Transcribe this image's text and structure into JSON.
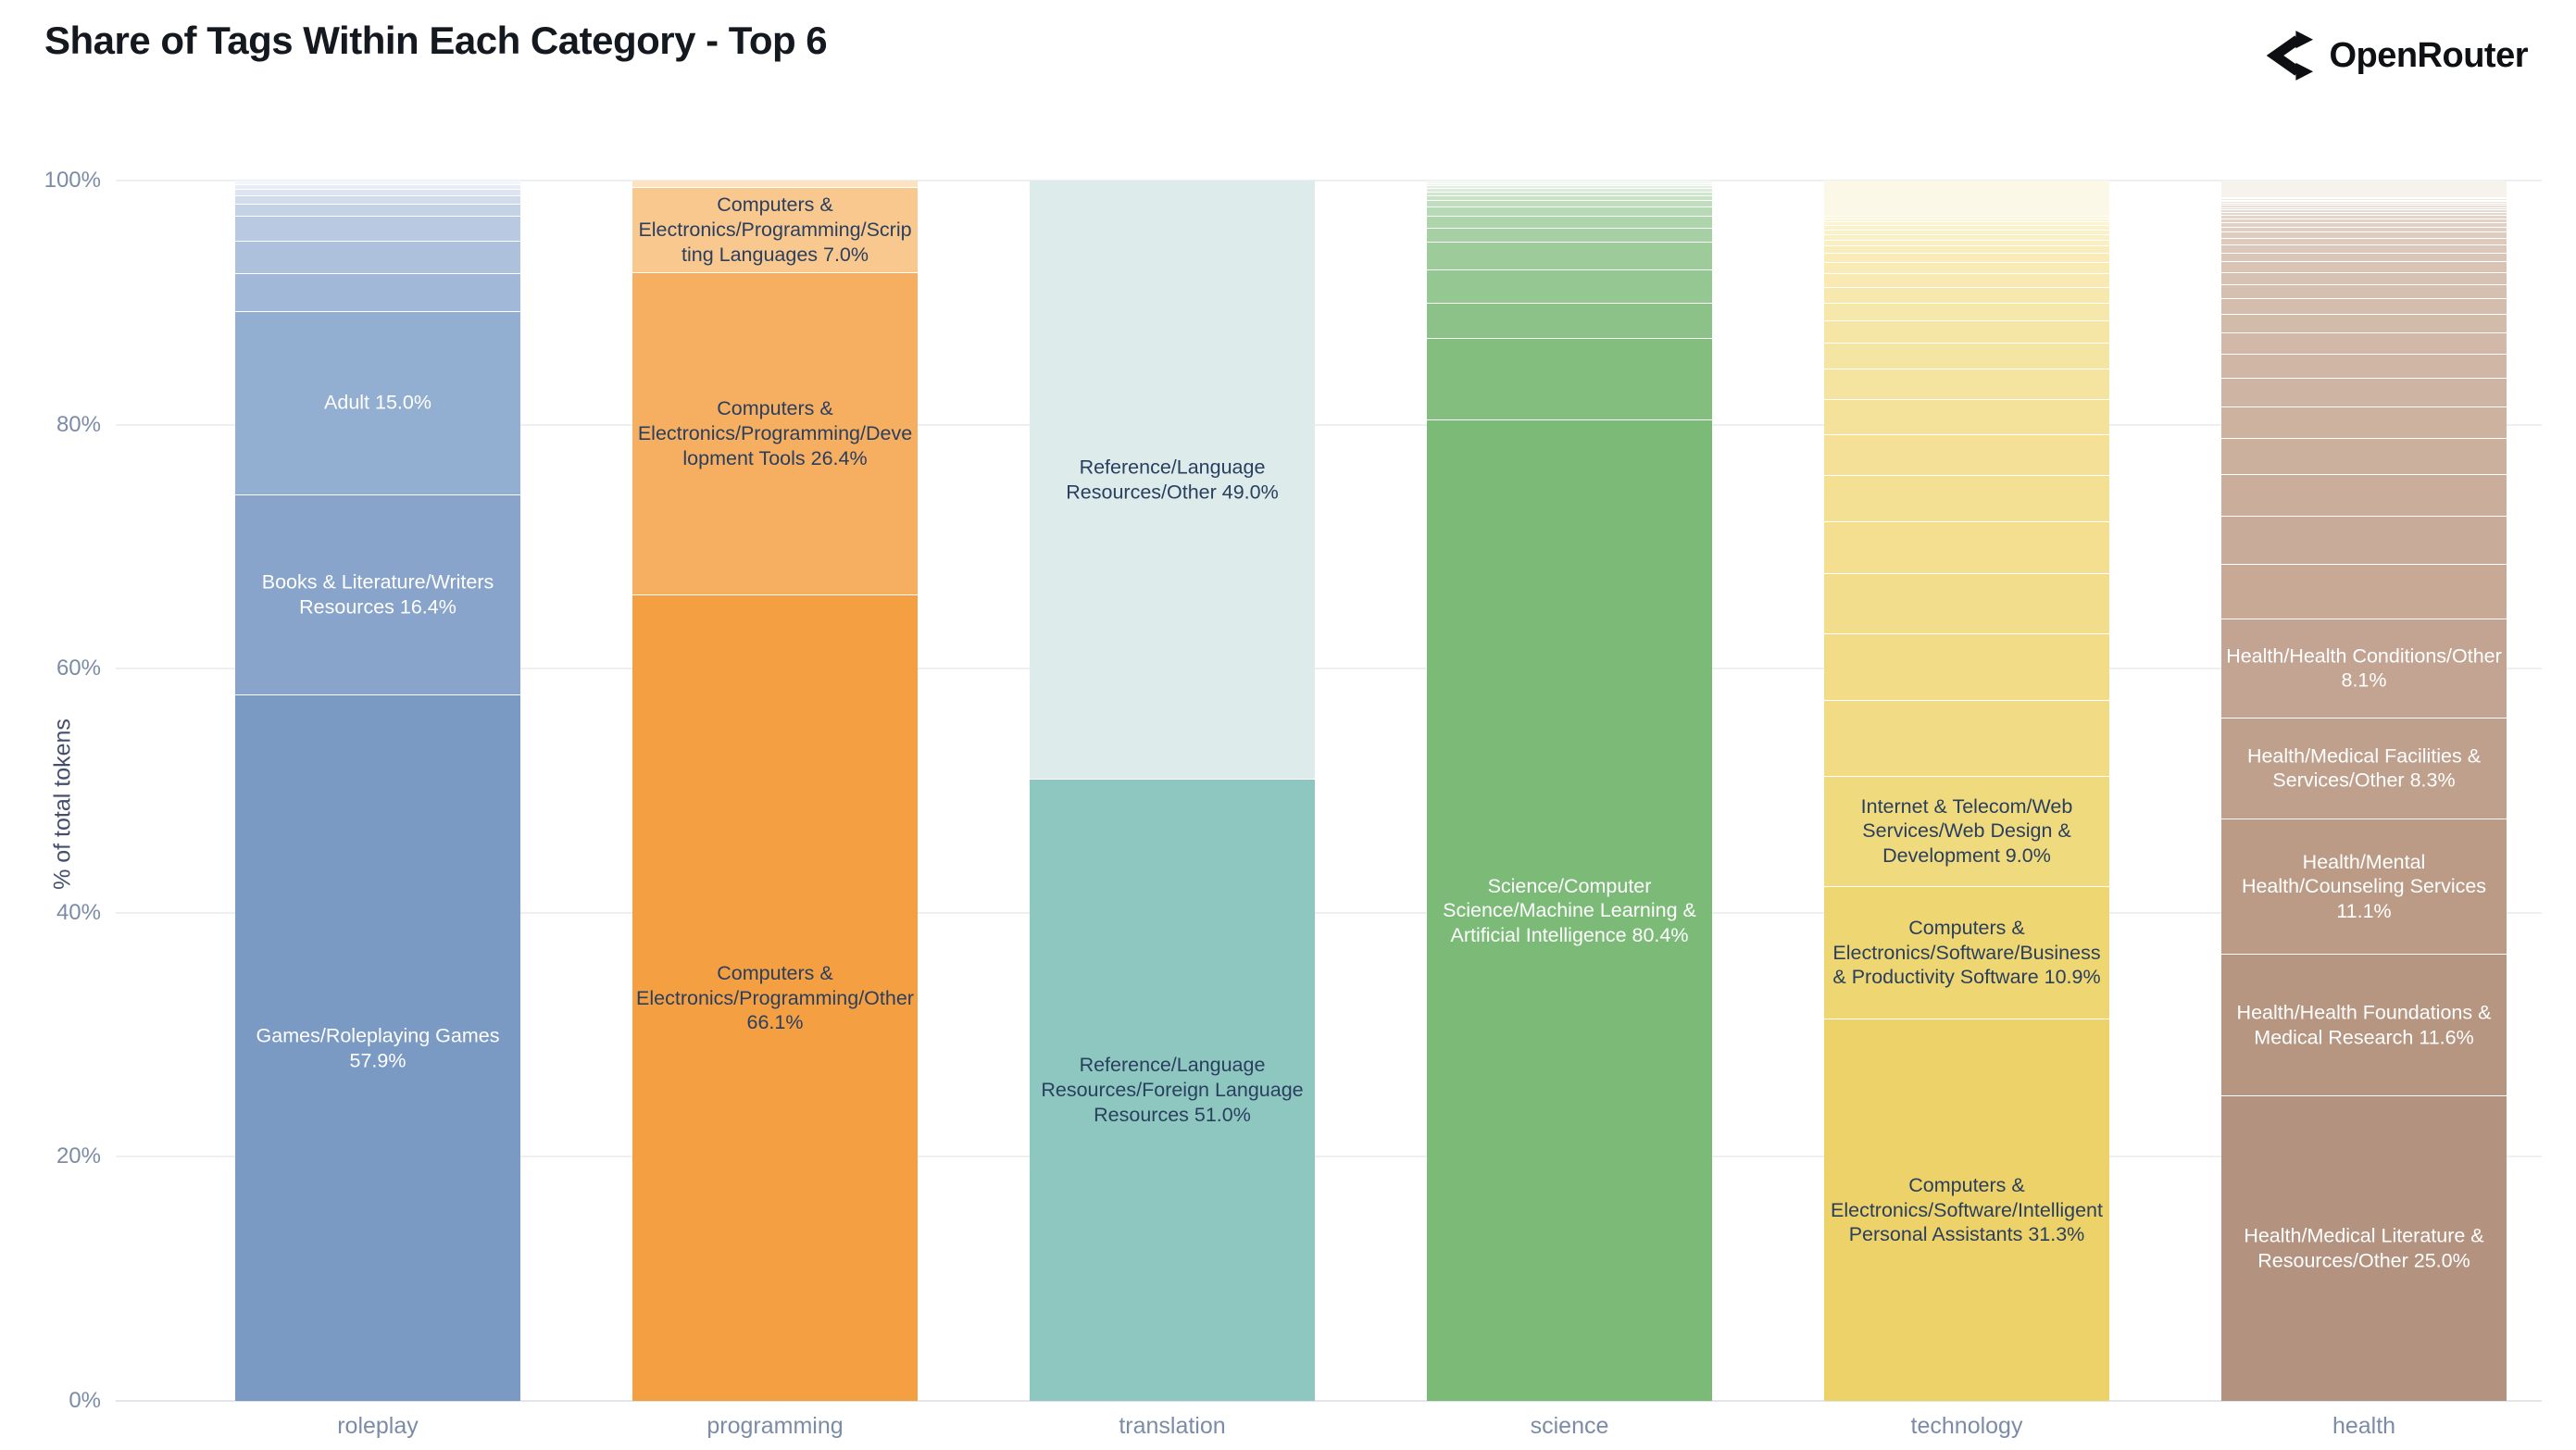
{
  "header": {
    "title": "Share of Tags Within Each Category - Top 6",
    "brand": "OpenRouter"
  },
  "chart_data": {
    "type": "bar",
    "stacked": true,
    "normalized": "percent",
    "title": "Share of Tags Within Each Category - Top 6",
    "xlabel": "",
    "ylabel": "% of total tokens",
    "ylim": [
      0,
      100
    ],
    "yticks": [
      "0%",
      "20%",
      "40%",
      "60%",
      "80%",
      "100%"
    ],
    "grid": true,
    "grid_color": "#edeff3",
    "legend": "none",
    "categories": [
      "roleplay",
      "programming",
      "translation",
      "science",
      "technology",
      "health"
    ],
    "bars": [
      {
        "category": "roleplay",
        "text_color": "#ffffff",
        "tail_from": "#a2b8d8",
        "tail_to": "#f2f5fa",
        "segments": [
          {
            "id": "games-roleplaying-games",
            "label": "Games/Roleplaying Games",
            "value": 57.9,
            "color": "#7a9ac4"
          },
          {
            "id": "books-literature-writers-resources",
            "label": "Books & Literature/Writers Resources",
            "value": 16.4,
            "color": "#88a4cb"
          },
          {
            "id": "adult",
            "label": "Adult",
            "value": 15.0,
            "color": "#92aed1"
          },
          {
            "value": 3.1
          },
          {
            "value": 2.7
          },
          {
            "value": 2.0
          },
          {
            "value": 1.0
          },
          {
            "value": 0.7
          },
          {
            "value": 0.5
          },
          {
            "value": 0.4
          },
          {
            "value": 0.3
          }
        ]
      },
      {
        "category": "programming",
        "text_color": "#2a3f5f",
        "tail_from": "#fbe3c2",
        "tail_to": "#fbe3c2",
        "segments": [
          {
            "id": "programming-other",
            "label": "Computers & Electronics/Programming/Other",
            "value": 66.1,
            "color": "#f49f42"
          },
          {
            "id": "development-tools",
            "label": "Computers & Electronics/Programming/Development Tools",
            "value": 26.4,
            "color": "#f6ae61"
          },
          {
            "id": "scripting-languages",
            "label": "Computers & Electronics/Programming/Scripting Languages",
            "value": 7.0,
            "color": "#f8c88f"
          },
          {
            "value": 0.5
          }
        ]
      },
      {
        "category": "translation",
        "text_color": "#2a3f5f",
        "tail_from": "#ddecea",
        "tail_to": "#ddecea",
        "segments": [
          {
            "id": "foreign-language-resources",
            "label": "Reference/Language Resources/Foreign Language Resources",
            "value": 51.0,
            "color": "#8ec7c0"
          },
          {
            "id": "language-resources-other",
            "label": "Reference/Language Resources/Other",
            "value": 49.0,
            "color": "#ddecea"
          }
        ]
      },
      {
        "category": "science",
        "text_color": "#ffffff",
        "tail_from": "#83be7f",
        "tail_to": "#f4f8f3",
        "segments": [
          {
            "id": "machine-learning-ai",
            "label": "Science/Computer Science/Machine Learning & Artificial Intelligence",
            "value": 80.4,
            "color": "#7cba78"
          },
          {
            "value": 6.7
          },
          {
            "value": 2.9
          },
          {
            "value": 2.7
          },
          {
            "value": 2.3
          },
          {
            "value": 1.1
          },
          {
            "value": 1.0
          },
          {
            "value": 0.8
          },
          {
            "value": 0.5
          },
          {
            "value": 0.4
          },
          {
            "value": 0.3
          },
          {
            "value": 0.3
          },
          {
            "value": 0.2
          },
          {
            "value": 0.2
          },
          {
            "value": 0.2
          }
        ]
      },
      {
        "category": "technology",
        "text_color": "#2a3f5f",
        "tail_from": "#f1db84",
        "tail_to": "#fdf6d8",
        "segments": [
          {
            "id": "intelligent-personal-assistants",
            "label": "Computers & Electronics/Software/Intelligent Personal Assistants",
            "value": 31.3,
            "color": "#edd269"
          },
          {
            "id": "business-productivity-software",
            "label": "Computers & Electronics/Software/Business & Productivity Software",
            "value": 10.9,
            "color": "#eed672"
          },
          {
            "id": "web-design-development",
            "label": "Internet & Telecom/Web Services/Web Design & Development",
            "value": 9.0,
            "color": "#f0da7e"
          },
          {
            "value": 6.2
          },
          {
            "value": 5.5
          },
          {
            "value": 4.9
          },
          {
            "value": 4.3
          },
          {
            "value": 3.8
          },
          {
            "value": 3.3
          },
          {
            "value": 2.9
          },
          {
            "value": 2.5
          },
          {
            "value": 2.1
          },
          {
            "value": 1.8
          },
          {
            "value": 1.5
          },
          {
            "value": 1.3
          },
          {
            "value": 1.1
          },
          {
            "value": 0.9
          },
          {
            "value": 0.75
          },
          {
            "value": 0.6
          },
          {
            "value": 0.5
          },
          {
            "value": 0.45
          },
          {
            "value": 0.4
          },
          {
            "value": 0.35
          },
          {
            "value": 0.3
          },
          {
            "value": 0.25
          },
          {
            "value": 0.2
          },
          {
            "value": 2.9,
            "color": "#fcf8e8"
          }
        ]
      },
      {
        "category": "health",
        "text_color": "#ffffff",
        "tail_from": "#c7a995",
        "tail_to": "#f1e9e2",
        "segments": [
          {
            "id": "medical-literature-resources-other",
            "label": "Health/Medical Literature & Resources/Other",
            "value": 25.0,
            "color": "#b3927f"
          },
          {
            "id": "health-foundations-medical-research",
            "label": "Health/Health Foundations & Medical Research",
            "value": 11.6,
            "color": "#b79681"
          },
          {
            "id": "mental-health-counseling-services",
            "label": "Health/Mental Health/Counseling Services",
            "value": 11.1,
            "color": "#bb9b86"
          },
          {
            "id": "medical-facilities-services-other",
            "label": "Health/Medical Facilities & Services/Other",
            "value": 8.3,
            "color": "#bfa08c"
          },
          {
            "id": "health-conditions-other",
            "label": "Health/Health Conditions/Other",
            "value": 8.1,
            "color": "#c3a492"
          },
          {
            "value": 4.5
          },
          {
            "value": 3.9
          },
          {
            "value": 3.4
          },
          {
            "value": 3.0
          },
          {
            "value": 2.6
          },
          {
            "value": 2.3
          },
          {
            "value": 2.0
          },
          {
            "value": 1.75
          },
          {
            "value": 1.5
          },
          {
            "value": 1.3
          },
          {
            "value": 1.15
          },
          {
            "value": 1.0
          },
          {
            "value": 0.85
          },
          {
            "value": 0.75
          },
          {
            "value": 0.65
          },
          {
            "value": 0.55
          },
          {
            "value": 0.48
          },
          {
            "value": 0.42
          },
          {
            "value": 0.36
          },
          {
            "value": 0.32
          },
          {
            "value": 0.28
          },
          {
            "value": 0.25
          },
          {
            "value": 0.22
          },
          {
            "value": 0.2
          },
          {
            "value": 0.18
          },
          {
            "value": 0.16
          },
          {
            "value": 0.14
          },
          {
            "value": 0.13
          },
          {
            "value": 0.12
          },
          {
            "value": 0.11
          },
          {
            "value": 1.33,
            "color": "#f6f2ec"
          }
        ]
      }
    ]
  }
}
